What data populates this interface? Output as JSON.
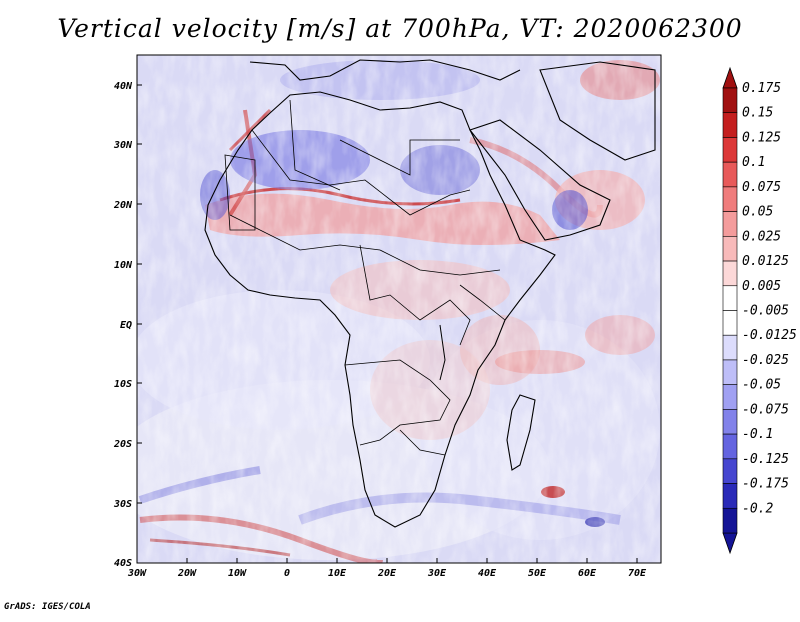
{
  "title": "Vertical velocity [m/s] at 700hPa, VT: 2020062300",
  "credit": "GrADS: IGES/COLA",
  "lat_labels": [
    "40N",
    "30N",
    "20N",
    "10N",
    "EQ",
    "10S",
    "20S",
    "30S",
    "40S"
  ],
  "lon_labels": [
    "30W",
    "20W",
    "10W",
    "0",
    "10E",
    "20E",
    "30E",
    "40E",
    "50E",
    "60E",
    "70E"
  ],
  "colorbar": {
    "labels": [
      "0.175",
      "0.15",
      "0.125",
      "0.1",
      "0.075",
      "0.05",
      "0.025",
      "0.0125",
      "0.005",
      "-0.005",
      "-0.0125",
      "-0.025",
      "-0.05",
      "-0.075",
      "-0.1",
      "-0.125",
      "-0.175",
      "-0.2"
    ],
    "colors": [
      "#a01010",
      "#c41e1e",
      "#dc3838",
      "#e85a5a",
      "#ef7c7c",
      "#f49c9c",
      "#f8baba",
      "#fcd8d8",
      "#ffffff",
      "#ffffff",
      "#dcdcfc",
      "#bebef8",
      "#a0a0f2",
      "#8282ea",
      "#6464e0",
      "#4646d0",
      "#2a2ab8",
      "#141496"
    ]
  },
  "colors": {
    "background": "#ffffff",
    "field_base": "#d9d9f6",
    "positive": "#e04848",
    "negative": "#5050d8",
    "coastline": "#000000"
  }
}
